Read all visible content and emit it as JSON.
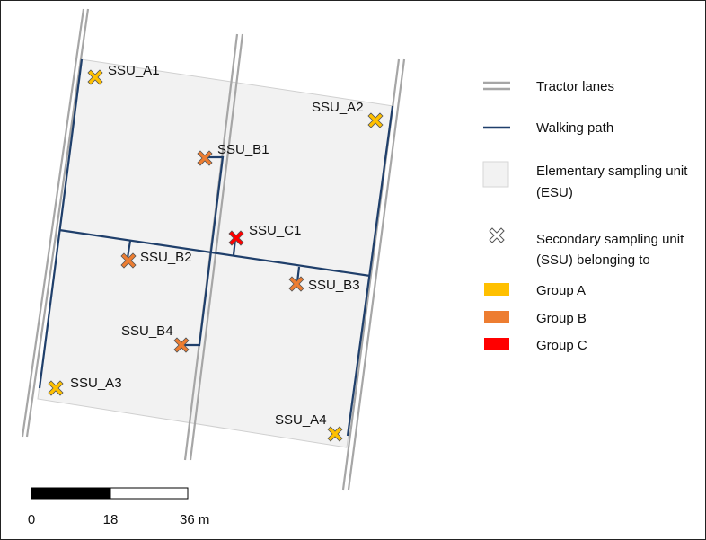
{
  "colors": {
    "group_a": "#ffc000",
    "group_b": "#ed7d31",
    "group_c": "#ff0000",
    "walking_path": "#1f3f6b",
    "tractor_lanes": "#a6a6a6",
    "esu_fill": "#f2f2f2"
  },
  "ssu_labels": {
    "a1": "SSU_A1",
    "a2": "SSU_A2",
    "a3": "SSU_A3",
    "a4": "SSU_A4",
    "b1": "SSU_B1",
    "b2": "SSU_B2",
    "b3": "SSU_B3",
    "b4": "SSU_B4",
    "c1": "SSU_C1"
  },
  "legend": {
    "tractor_lanes": "Tractor lanes",
    "walking_path": "Walking path",
    "esu_line1": "Elementary sampling unit",
    "esu_line2": "(ESU)",
    "ssu_line1": "Secondary sampling unit",
    "ssu_line2": "(SSU) belonging to",
    "group_a": "Group A",
    "group_b": "Group B",
    "group_c": "Group C"
  },
  "scale_bar": {
    "tick_0": "0",
    "tick_1": "18",
    "tick_2": "36 m"
  }
}
